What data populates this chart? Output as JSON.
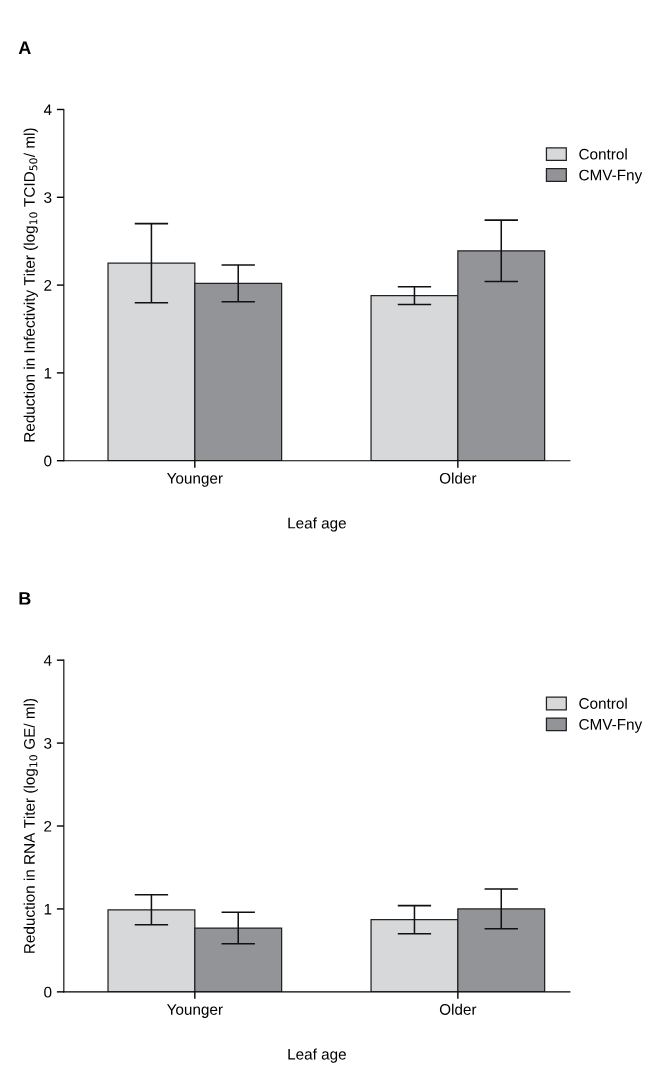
{
  "chart_data": [
    {
      "type": "bar",
      "title": "A",
      "xlabel": "Leaf age",
      "ylabel": "Reduction in Infectivity Titer (log$_{10}$ TCID$_{50}$/ ml)",
      "categories": [
        "Younger",
        "Older"
      ],
      "ylim": [
        0,
        4
      ],
      "yticks": [
        0,
        1,
        2,
        3,
        4
      ],
      "legend": "top right",
      "grid": false,
      "series": [
        {
          "name": "Control",
          "color": "#d7d8da",
          "values": [
            2.25,
            1.88
          ],
          "errors": [
            0.45,
            0.1
          ]
        },
        {
          "name": "CMV-Fny",
          "color": "#939497",
          "values": [
            2.02,
            2.39
          ],
          "errors": [
            0.21,
            0.35
          ]
        }
      ]
    },
    {
      "type": "bar",
      "title": "B",
      "xlabel": "Leaf age",
      "ylabel": "Reduction in RNA Titer (log$_{10}$ GE/ ml)",
      "categories": [
        "Younger",
        "Older"
      ],
      "ylim": [
        0,
        4
      ],
      "yticks": [
        0,
        1,
        2,
        3,
        4
      ],
      "legend": "top right",
      "grid": false,
      "series": [
        {
          "name": "Control",
          "color": "#d7d8da",
          "values": [
            0.99,
            0.87
          ],
          "errors": [
            0.18,
            0.17
          ]
        },
        {
          "name": "CMV-Fny",
          "color": "#939497",
          "values": [
            0.77,
            1.0
          ],
          "errors": [
            0.19,
            0.24
          ]
        }
      ]
    }
  ]
}
